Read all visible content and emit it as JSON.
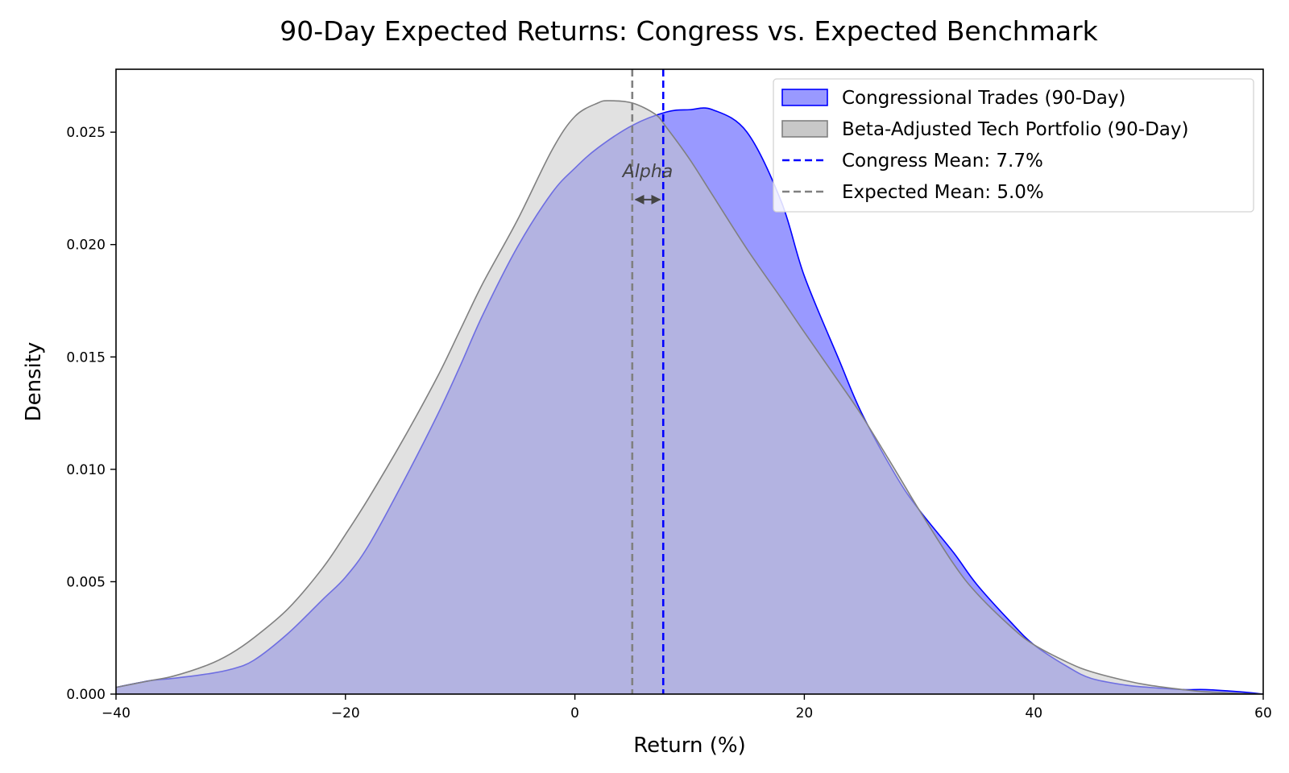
{
  "chart_data": {
    "type": "area",
    "title": "90-Day Expected Returns: Congress vs. Expected Benchmark",
    "xlabel": "Return (%)",
    "ylabel": "Density",
    "xlim": [
      -40,
      60
    ],
    "ylim": [
      0,
      0.0278
    ],
    "x_ticks": [
      -40,
      -20,
      0,
      20,
      40,
      60
    ],
    "x_tick_labels": [
      "−40",
      "−20",
      "0",
      "20",
      "40",
      "60"
    ],
    "y_ticks": [
      0,
      0.005,
      0.01,
      0.015,
      0.02,
      0.025
    ],
    "y_tick_labels": [
      "0.000",
      "0.005",
      "0.010",
      "0.015",
      "0.020",
      "0.025"
    ],
    "grid": false,
    "legend_position": "top-right",
    "series": [
      {
        "name": "Beta-Adjusted Tech Portfolio (90-Day)",
        "kind": "density-fill",
        "fill_color": "#c8c8c8",
        "line_color": "#808080",
        "x": [
          -40,
          -37,
          -35,
          -32,
          -30,
          -28,
          -25,
          -22,
          -20,
          -18,
          -15,
          -12,
          -10,
          -8,
          -5,
          -2,
          0,
          2,
          3,
          5,
          7,
          8,
          10,
          12,
          15,
          18,
          20,
          23,
          25,
          28,
          30,
          33,
          35,
          38,
          40,
          43,
          45,
          48,
          50,
          53,
          55,
          58,
          60
        ],
        "y": [
          0.0003,
          0.0006,
          0.0008,
          0.0013,
          0.0018,
          0.0025,
          0.0038,
          0.0056,
          0.0071,
          0.0087,
          0.0113,
          0.0141,
          0.0162,
          0.0183,
          0.0211,
          0.0242,
          0.0257,
          0.0263,
          0.0264,
          0.0263,
          0.0258,
          0.0252,
          0.0238,
          0.0222,
          0.0198,
          0.0176,
          0.0161,
          0.0139,
          0.0124,
          0.0099,
          0.0082,
          0.0058,
          0.0045,
          0.003,
          0.0022,
          0.0014,
          0.001,
          0.0006,
          0.0004,
          0.0002,
          0.0001,
          3e-05,
          0.0
        ]
      },
      {
        "name": "Congressional Trades (90-Day)",
        "kind": "density-fill",
        "fill_color": "#5b5bff",
        "line_color": "#0000ff",
        "x": [
          -40,
          -37,
          -35,
          -32,
          -30,
          -28,
          -25,
          -22,
          -20,
          -18,
          -15,
          -12,
          -10,
          -8,
          -5,
          -2,
          0,
          2,
          5,
          8,
          10,
          12,
          15,
          18,
          20,
          23,
          25,
          28,
          30,
          33,
          35,
          38,
          40,
          43,
          45,
          48,
          50,
          53,
          55,
          58,
          60
        ],
        "y": [
          0.0003,
          0.0006,
          0.0007,
          0.0009,
          0.0011,
          0.0015,
          0.0027,
          0.0042,
          0.0052,
          0.0066,
          0.0094,
          0.0124,
          0.0146,
          0.0169,
          0.0199,
          0.0223,
          0.0234,
          0.0243,
          0.0253,
          0.0259,
          0.026,
          0.026,
          0.025,
          0.0219,
          0.0186,
          0.0149,
          0.0125,
          0.0097,
          0.0082,
          0.0063,
          0.0049,
          0.0032,
          0.0022,
          0.0012,
          0.0007,
          0.0004,
          0.0003,
          0.0002,
          0.0002,
          0.0001,
          0.0
        ]
      },
      {
        "name": "Congress Mean: 7.7%",
        "kind": "vline",
        "x": 7.7,
        "line_color": "#0000ff",
        "dash": true
      },
      {
        "name": "Expected Mean: 5.0%",
        "kind": "vline",
        "x": 5.0,
        "line_color": "#808080",
        "dash": true
      }
    ],
    "legend_order": [
      "Congressional Trades (90-Day)",
      "Beta-Adjusted Tech Portfolio (90-Day)",
      "Congress Mean: 7.7%",
      "Expected Mean: 5.0%"
    ],
    "annotations": [
      {
        "text": "Alpha",
        "x": 6.35,
        "y": 0.023,
        "arrow_from_x": 5.0,
        "arrow_to_x": 7.7,
        "arrow_y": 0.022,
        "color": "#444444"
      }
    ]
  }
}
